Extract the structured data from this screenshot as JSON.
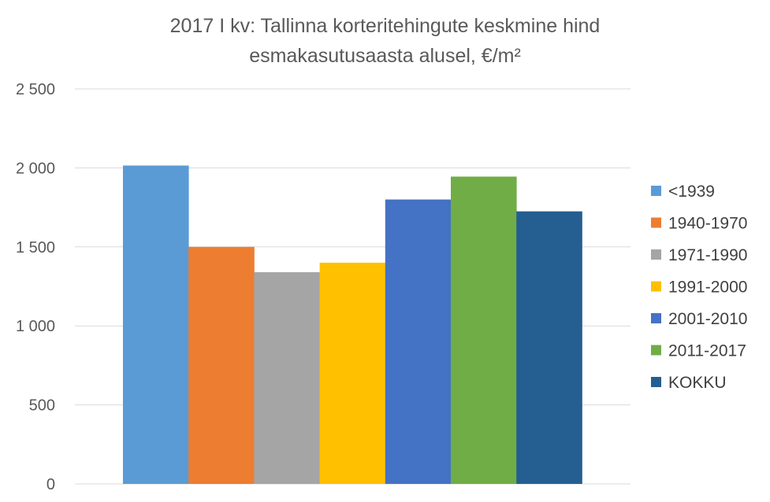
{
  "chart_data": {
    "type": "bar",
    "title_line1": "2017 I kv: Tallinna korteritehingute keskmine hind",
    "title_line2": "esmakasutusaasta alusel, €/m²",
    "ylim": [
      0,
      2500
    ],
    "yticks": [
      0,
      500,
      1000,
      1500,
      2000,
      2500
    ],
    "ytick_labels": [
      "0",
      "500",
      "1 000",
      "1 500",
      "2 000",
      "2 500"
    ],
    "grid": true,
    "legend_position": "right",
    "series": [
      {
        "name": "<1939",
        "value": 2015,
        "color": "#5B9BD5"
      },
      {
        "name": "1940-1970",
        "value": 1500,
        "color": "#ED7D31"
      },
      {
        "name": "1971-1990",
        "value": 1340,
        "color": "#A5A5A5"
      },
      {
        "name": "1991-2000",
        "value": 1400,
        "color": "#FFC000"
      },
      {
        "name": "2001-2010",
        "value": 1800,
        "color": "#4472C4"
      },
      {
        "name": "2011-2017",
        "value": 1945,
        "color": "#70AD47"
      },
      {
        "name": "KOKKU",
        "value": 1725,
        "color": "#255E91"
      }
    ]
  }
}
